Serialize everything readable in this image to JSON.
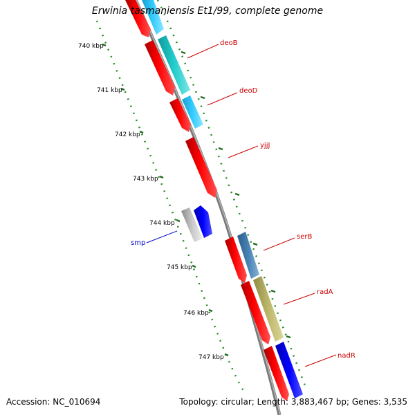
{
  "title": "Erwinia tasmaniensis Et1/99, complete genome",
  "footer": {
    "accession": "Accession: NC_010694",
    "summary": "Topology: circular; Length: 3,883,467 bp; Genes: 3,535"
  },
  "scale_ticks": [
    "740 kbp",
    "741 kbp",
    "742 kbp",
    "743 kbp",
    "744 kbp",
    "745 kbp",
    "746 kbp",
    "747 kbp"
  ],
  "gene_labels": [
    {
      "name": "deoB",
      "color": "#cc0000"
    },
    {
      "name": "deoD",
      "color": "#cc0000"
    },
    {
      "name": "yjjJ",
      "color": "#cc0000"
    },
    {
      "name": "serB",
      "color": "#cc0000"
    },
    {
      "name": "radA",
      "color": "#cc0000"
    },
    {
      "name": "nadR",
      "color": "#cc0000"
    },
    {
      "name": "smp",
      "color": "#0000cc"
    }
  ],
  "colors": {
    "backbone": "#888888",
    "scale": "#228b22",
    "cds_red": "#ff0000",
    "cyan": "#33ccff",
    "teal": "#22cccc",
    "steel": "#4682b4",
    "khaki": "#bdb76b",
    "blue": "#0000ff",
    "grey": "#c0c0c0"
  }
}
